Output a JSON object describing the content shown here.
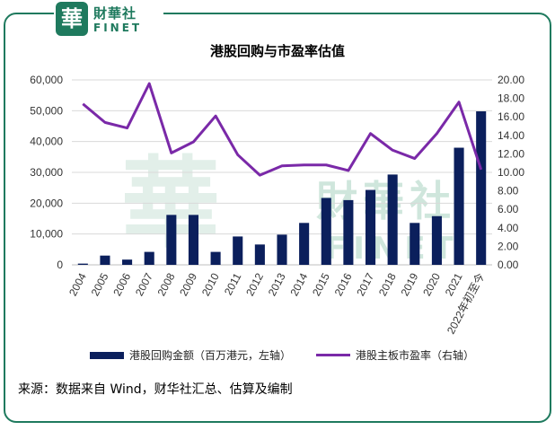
{
  "brand": {
    "logo_char": "華",
    "name_cn": "財華社",
    "name_en": "FINET",
    "watermark_cn": "財華社",
    "watermark_en": "FINET"
  },
  "colors": {
    "bar": "#0b1f5c",
    "line": "#7a29a8",
    "frame": "#1f7a5e",
    "grid": "#d9d9d9",
    "watermark": "#cfe6dc"
  },
  "chart_data": {
    "type": "bar+line",
    "title": "港股回购与市盈率估值",
    "categories": [
      "2004",
      "2005",
      "2006",
      "2007",
      "2008",
      "2009",
      "2010",
      "2011",
      "2012",
      "2013",
      "2014",
      "2015",
      "2016",
      "2017",
      "2018",
      "2019",
      "2020",
      "2021",
      "2022年初至今"
    ],
    "series": [
      {
        "name": "港股回购金额（百万港元，左轴）",
        "type": "bar",
        "axis": "left",
        "values": [
          400,
          3000,
          1700,
          4200,
          16200,
          16200,
          4200,
          9200,
          6600,
          9800,
          13600,
          21700,
          21000,
          24300,
          29300,
          13600,
          15800,
          38000,
          49800
        ]
      },
      {
        "name": "港股主板市盈率（右轴）",
        "type": "line",
        "axis": "right",
        "values": [
          17.4,
          15.4,
          14.8,
          19.6,
          12.1,
          13.3,
          16.1,
          11.9,
          9.7,
          10.7,
          10.8,
          10.8,
          10.2,
          14.2,
          12.4,
          11.5,
          14.2,
          17.6,
          10.3
        ]
      }
    ],
    "left_axis": {
      "ylim": [
        0,
        60000
      ],
      "ticks": [
        0,
        10000,
        20000,
        30000,
        40000,
        50000,
        60000
      ],
      "tick_labels": [
        "0",
        "10,000",
        "20,000",
        "30,000",
        "40,000",
        "50,000",
        "60,000"
      ]
    },
    "right_axis": {
      "ylim": [
        0,
        20
      ],
      "ticks": [
        0,
        2,
        4,
        6,
        8,
        10,
        12,
        14,
        16,
        18,
        20
      ],
      "tick_labels": [
        "0.00",
        "2.00",
        "4.00",
        "6.00",
        "8.00",
        "10.00",
        "12.00",
        "14.00",
        "16.00",
        "18.00",
        "20.00"
      ]
    },
    "legend": [
      "港股回购金额（百万港元，左轴）",
      "港股主板市盈率（右轴）"
    ],
    "legend_position": "bottom",
    "grid": true
  },
  "source_note": "来源：数据来自 Wind，财华社汇总、估算及编制"
}
